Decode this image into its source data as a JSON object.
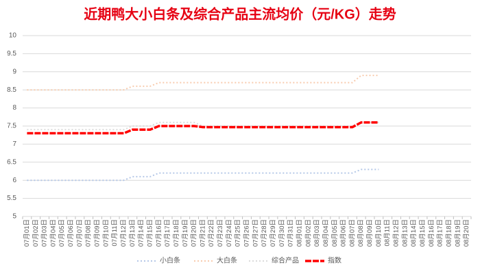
{
  "chart_data": {
    "type": "line",
    "title": "近期鸭大小白条及综合产品主流均价（元/KG）走势",
    "categories": [
      "07月01日",
      "07月02日",
      "07月03日",
      "07月04日",
      "07月05日",
      "07月06日",
      "07月07日",
      "07月08日",
      "07月09日",
      "07月10日",
      "07月11日",
      "07月12日",
      "07月13日",
      "07月14日",
      "07月15日",
      "07月16日",
      "07月17日",
      "07月18日",
      "07月19日",
      "07月20日",
      "07月21日",
      "07月22日",
      "07月23日",
      "07月24日",
      "07月25日",
      "07月26日",
      "07月27日",
      "07月28日",
      "07月29日",
      "07月30日",
      "07月31日",
      "08月01日",
      "08月02日",
      "08月03日",
      "08月04日",
      "08月05日",
      "08月06日",
      "08月07日",
      "08月08日",
      "08月09日",
      "08月10日",
      "08月11日",
      "08月12日",
      "08月13日",
      "08月14日",
      "08月15日",
      "08月16日",
      "08月17日",
      "08月18日",
      "08月19日",
      "08月20日"
    ],
    "series": [
      {
        "name": "小白条",
        "color": "#b4c7e7",
        "values": [
          6,
          6,
          6,
          6,
          6,
          6,
          6,
          6,
          6,
          6,
          6,
          6,
          6.1,
          6.1,
          6.1,
          6.2,
          6.2,
          6.2,
          6.2,
          6.2,
          6.2,
          6.2,
          6.2,
          6.2,
          6.2,
          6.2,
          6.2,
          6.2,
          6.2,
          6.2,
          6.2,
          6.2,
          6.2,
          6.2,
          6.2,
          6.2,
          6.2,
          6.2,
          6.3,
          6.3,
          6.3,
          null,
          null,
          null,
          null,
          null,
          null,
          null,
          null,
          null,
          null
        ]
      },
      {
        "name": "大白条",
        "color": "#f8cbad",
        "values": [
          8.5,
          8.5,
          8.5,
          8.5,
          8.5,
          8.5,
          8.5,
          8.5,
          8.5,
          8.5,
          8.5,
          8.5,
          8.6,
          8.6,
          8.6,
          8.7,
          8.7,
          8.7,
          8.7,
          8.7,
          8.7,
          8.7,
          8.7,
          8.7,
          8.7,
          8.7,
          8.7,
          8.7,
          8.7,
          8.7,
          8.7,
          8.7,
          8.7,
          8.7,
          8.7,
          8.7,
          8.7,
          8.7,
          8.9,
          8.9,
          8.9,
          null,
          null,
          null,
          null,
          null,
          null,
          null,
          null,
          null,
          null
        ]
      },
      {
        "name": "综合产品",
        "color": "#dbdbdb",
        "values": [
          7.4,
          7.4,
          7.4,
          7.4,
          7.4,
          7.4,
          7.4,
          7.4,
          7.4,
          7.4,
          7.4,
          7.4,
          7.5,
          7.5,
          7.5,
          7.6,
          7.6,
          7.6,
          7.6,
          7.6,
          7.5,
          7.5,
          7.5,
          7.5,
          7.5,
          7.5,
          7.5,
          7.5,
          7.5,
          7.5,
          7.5,
          7.5,
          7.5,
          7.5,
          7.5,
          7.5,
          7.5,
          7.5,
          7.6,
          7.6,
          7.6,
          null,
          null,
          null,
          null,
          null,
          null,
          null,
          null,
          null,
          null
        ]
      },
      {
        "name": "指数",
        "color": "#ff0000",
        "values": [
          7.3,
          7.3,
          7.3,
          7.3,
          7.3,
          7.3,
          7.3,
          7.3,
          7.3,
          7.3,
          7.3,
          7.3,
          7.4,
          7.4,
          7.4,
          7.5,
          7.5,
          7.5,
          7.5,
          7.5,
          7.47,
          7.47,
          7.47,
          7.47,
          7.47,
          7.47,
          7.47,
          7.47,
          7.47,
          7.47,
          7.47,
          7.47,
          7.47,
          7.47,
          7.47,
          7.47,
          7.47,
          7.47,
          7.6,
          7.6,
          7.6,
          null,
          null,
          null,
          null,
          null,
          null,
          null,
          null,
          null,
          null
        ]
      }
    ],
    "ylim": [
      5,
      10
    ],
    "yticks": [
      5,
      5.5,
      6,
      6.5,
      7,
      7.5,
      8,
      8.5,
      9,
      9.5,
      10
    ],
    "grid": true,
    "legend": "bottom"
  }
}
